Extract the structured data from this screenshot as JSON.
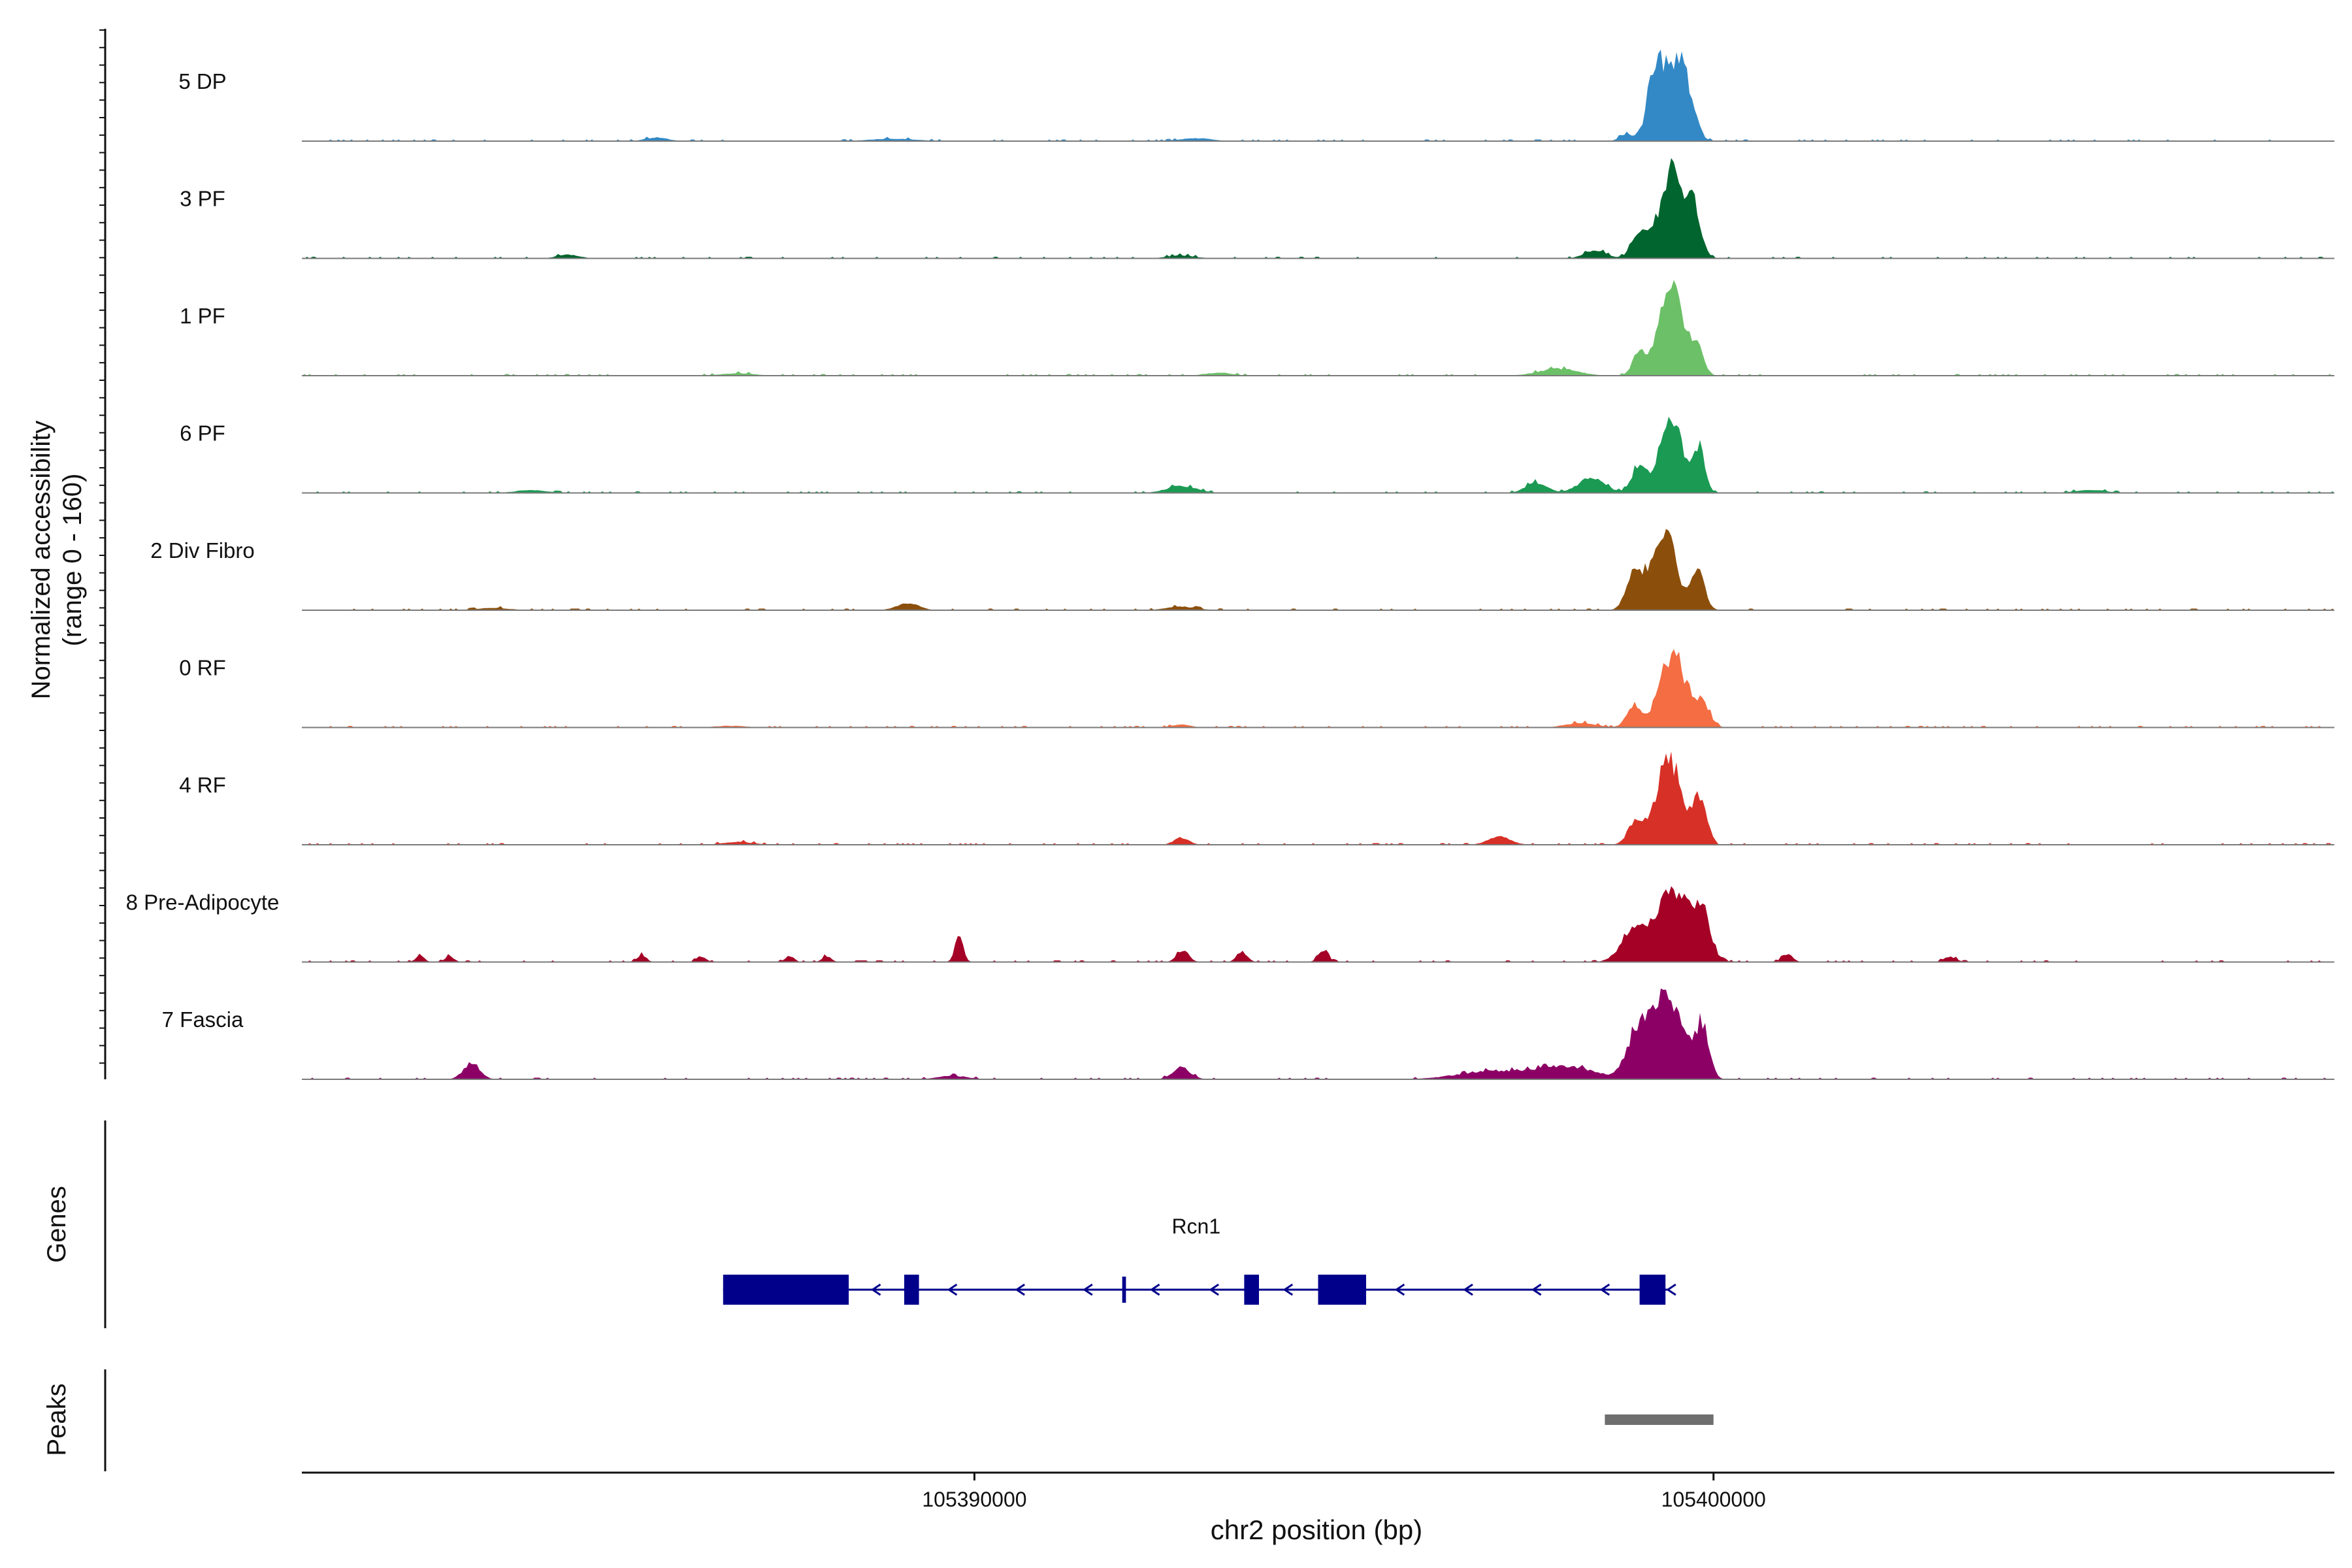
{
  "chart_data": {
    "type": "area",
    "title": "",
    "xlabel": "chr2 position (bp)",
    "ylabel": "Normalized accessibility",
    "ylabel_range": "(range 0 - 160)",
    "ylim": [
      0,
      160
    ],
    "xlim": [
      105380900,
      105408400
    ],
    "x_ticks": [
      105390000,
      105400000
    ],
    "x_tick_labels": [
      "105390000",
      "105400000"
    ],
    "grid": false,
    "tracks": [
      {
        "name": "5 DP",
        "color": "#3389c6",
        "peaks": [
          [
            105399380,
            190,
            132
          ],
          [
            105399180,
            70,
            45
          ],
          [
            105399620,
            110,
            55
          ],
          [
            105398800,
            80,
            10
          ],
          [
            105385700,
            150,
            6
          ],
          [
            105393000,
            200,
            5
          ],
          [
            105388900,
            300,
            4
          ]
        ]
      },
      {
        "name": "3 PF",
        "color": "#00652e",
        "peaks": [
          [
            105399450,
            170,
            148
          ],
          [
            105399000,
            110,
            40
          ],
          [
            105399750,
            90,
            58
          ],
          [
            105398400,
            140,
            14
          ],
          [
            105384500,
            150,
            6
          ],
          [
            105392800,
            180,
            5
          ]
        ]
      },
      {
        "name": "1 PF",
        "color": "#6cc067",
        "peaks": [
          [
            105399430,
            160,
            148
          ],
          [
            105399000,
            90,
            40
          ],
          [
            105399780,
            85,
            48
          ],
          [
            105397900,
            260,
            12
          ],
          [
            105393300,
            180,
            5
          ],
          [
            105386800,
            220,
            4
          ]
        ]
      },
      {
        "name": "6 PF",
        "color": "#1b9a53",
        "peaks": [
          [
            105399430,
            150,
            128
          ],
          [
            105399000,
            100,
            48
          ],
          [
            105399800,
            80,
            72
          ],
          [
            105398350,
            180,
            25
          ],
          [
            105397600,
            140,
            18
          ],
          [
            105392800,
            200,
            12
          ],
          [
            105384000,
            200,
            5
          ],
          [
            105405100,
            200,
            5
          ]
        ]
      },
      {
        "name": "2 Div Fibro",
        "color": "#8c4f0b",
        "peaks": [
          [
            105399320,
            160,
            135
          ],
          [
            105398930,
            110,
            60
          ],
          [
            105399780,
            95,
            62
          ],
          [
            105389100,
            150,
            12
          ],
          [
            105392800,
            200,
            6
          ],
          [
            105383500,
            200,
            4
          ]
        ]
      },
      {
        "name": "0 RF",
        "color": "#f46d43",
        "peaks": [
          [
            105399450,
            175,
            122
          ],
          [
            105398920,
            95,
            38
          ],
          [
            105399850,
            100,
            40
          ],
          [
            105398200,
            200,
            8
          ],
          [
            105392800,
            120,
            5
          ],
          [
            105386700,
            200,
            3
          ]
        ]
      },
      {
        "name": "4 RF",
        "color": "#d73027",
        "peaks": [
          [
            105399400,
            180,
            138
          ],
          [
            105398950,
            110,
            32
          ],
          [
            105399820,
            85,
            75
          ],
          [
            105397100,
            150,
            14
          ],
          [
            105392800,
            100,
            12
          ],
          [
            105386800,
            200,
            5
          ]
        ]
      },
      {
        "name": "8 Pre-Adipocyte",
        "color": "#a50026",
        "peaks": [
          [
            105399460,
            240,
            120
          ],
          [
            105398920,
            170,
            50
          ],
          [
            105399850,
            110,
            60
          ],
          [
            105389790,
            55,
            45
          ],
          [
            105392820,
            80,
            20
          ],
          [
            105393620,
            70,
            18
          ],
          [
            105394720,
            70,
            18
          ],
          [
            105385500,
            60,
            12
          ],
          [
            105386300,
            60,
            10
          ],
          [
            105401000,
            70,
            14
          ],
          [
            105382500,
            60,
            10
          ],
          [
            105382900,
            60,
            10
          ],
          [
            105387500,
            60,
            10
          ],
          [
            105388000,
            60,
            10
          ],
          [
            105403200,
            80,
            9
          ]
        ]
      },
      {
        "name": "7 Fascia",
        "color": "#8c0066",
        "peaks": [
          [
            105399350,
            220,
            148
          ],
          [
            105398950,
            140,
            60
          ],
          [
            105399850,
            90,
            86
          ],
          [
            105398000,
            380,
            22
          ],
          [
            105397000,
            450,
            14
          ],
          [
            105383200,
            110,
            28
          ],
          [
            105392800,
            120,
            20
          ],
          [
            105389700,
            200,
            6
          ]
        ]
      }
    ],
    "gene_track": {
      "label": "Genes",
      "gene_name": "Rcn1",
      "strand": "-",
      "gene_start": 105386600,
      "gene_end": 105399400,
      "exons": [
        {
          "start": 105386600,
          "end": 105388300,
          "tall": true
        },
        {
          "start": 105389050,
          "end": 105389250,
          "tall": true
        },
        {
          "start": 105392000,
          "end": 105392050,
          "tall": false
        },
        {
          "start": 105393650,
          "end": 105393850,
          "tall": true
        },
        {
          "start": 105394650,
          "end": 105395300,
          "tall": true
        },
        {
          "start": 105399000,
          "end": 105399350,
          "tall": true
        }
      ]
    },
    "peak_track": {
      "label": "Peaks",
      "color": "#6e6e6e",
      "regions": [
        [
          105398530,
          105400000
        ]
      ]
    }
  }
}
